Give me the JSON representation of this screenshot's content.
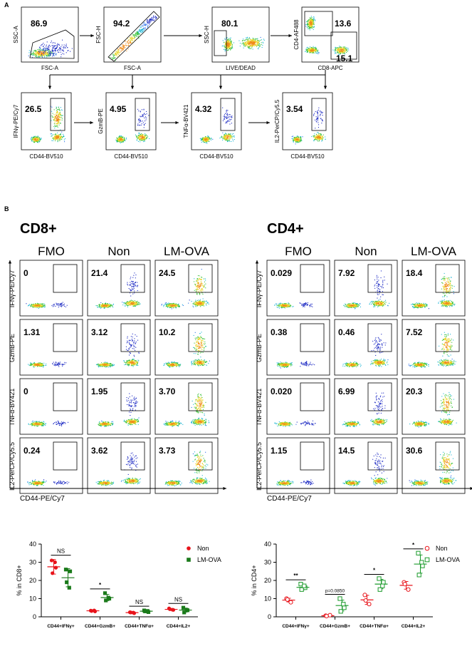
{
  "panel_a": {
    "label": "A",
    "top_row": [
      {
        "pct": "86.9",
        "ylabel": "SSC-A",
        "xlabel": "FSC-A"
      },
      {
        "pct": "94.2",
        "ylabel": "FSC-H",
        "xlabel": "FSC-A"
      },
      {
        "pct": "80.1",
        "ylabel": "SSC-H",
        "xlabel": "LIVE/DEAD"
      },
      {
        "pct": "13.6",
        "pct2": "15.1",
        "ylabel": "CD4-AF488",
        "xlabel": "CD8-APC"
      }
    ],
    "bottom_row": [
      {
        "pct": "26.5",
        "ylabel": "IFNγ-PE/Cy7",
        "xlabel": "CD44-BV510"
      },
      {
        "pct": "4.95",
        "ylabel": "GzmB-PE",
        "xlabel": "CD44-BV510"
      },
      {
        "pct": "4.32",
        "ylabel": "TNFα-BV421",
        "xlabel": "CD44-BV510"
      },
      {
        "pct": "3.54",
        "ylabel": "IL2-PerCP/Cy5.5",
        "xlabel": "CD44-BV510"
      }
    ]
  },
  "panel_b": {
    "label": "B",
    "grids": [
      {
        "title": "CD8+",
        "columns": [
          "FMO",
          "Non",
          "LM-OVA"
        ],
        "row_labels": [
          "IFNγ-PE/Cy7",
          "GzmB-PE",
          "TNFα-BV421",
          "IL2-PerCP/Cy5.5"
        ],
        "xlabel": "CD44-PE/Cy7",
        "values": [
          [
            "0",
            "21.4",
            "24.5"
          ],
          [
            "1.31",
            "3.12",
            "10.2"
          ],
          [
            "0",
            "1.95",
            "3.70"
          ],
          [
            "0.24",
            "3.62",
            "3.73"
          ]
        ]
      },
      {
        "title": "CD4+",
        "columns": [
          "FMO",
          "Non",
          "LM-OVA"
        ],
        "row_labels": [
          "IFNγ-PE/Cy7",
          "GzmB-PE",
          "TNFα-BV421",
          "IL2-PerCP/Cy5.5"
        ],
        "xlabel": "CD44-PE/Cy7",
        "values": [
          [
            "0.029",
            "7.92",
            "18.4"
          ],
          [
            "0.38",
            "0.46",
            "7.52"
          ],
          [
            "0.020",
            "6.99",
            "20.3"
          ],
          [
            "1.15",
            "14.5",
            "30.6"
          ]
        ]
      }
    ]
  },
  "colors": {
    "non_cd8": "#e8131a",
    "lmova_cd8": "#1a7a1a",
    "non_cd4": "#e8131a",
    "lmova_cd4": "#1a9a2a"
  },
  "chart_data": [
    {
      "type": "scatter",
      "ylabel": "% in CD8+",
      "ylim": [
        0,
        40
      ],
      "yticks": [
        0,
        10,
        20,
        30,
        40
      ],
      "categories": [
        "CD44+IFNγ+",
        "CD44+GzmB+",
        "CD44+TNFα+",
        "CD44+IL2+"
      ],
      "legend_position": "top-right",
      "series": [
        {
          "name": "Non",
          "marker": "filled-circle",
          "points": [
            [
              31,
              27,
              24,
              30
            ],
            [
              3.4,
              3.0,
              3.2,
              3.5
            ],
            [
              2.5,
              2.0,
              2.4,
              2.3
            ],
            [
              4.6,
              3.8,
              4.2,
              3.9
            ]
          ],
          "mean": [
            27.5,
            3.3,
            2.3,
            4.1
          ],
          "sd": [
            4.0,
            0.3,
            0.3,
            0.4
          ]
        },
        {
          "name": "LM-OVA",
          "marker": "filled-square",
          "points": [
            [
              26,
              25,
              19,
              16
            ],
            [
              13,
              10,
              9,
              10.5
            ],
            [
              3.5,
              2.6,
              3.0,
              3.2
            ],
            [
              5.0,
              3.6,
              2.4,
              3.8
            ]
          ],
          "mean": [
            21.5,
            10.6,
            3.1,
            3.7
          ],
          "sd": [
            5.0,
            1.7,
            0.4,
            1.1
          ]
        }
      ],
      "significance": [
        "NS",
        "*",
        "NS",
        "NS"
      ]
    },
    {
      "type": "scatter",
      "ylabel": "% in CD4+",
      "ylim": [
        0,
        40
      ],
      "yticks": [
        0,
        10,
        20,
        30,
        40
      ],
      "categories": [
        "CD44+IFNγ+",
        "CD44+GzmB+",
        "CD44+TNFα+",
        "CD44+IL2+"
      ],
      "legend_position": "top-right",
      "series": [
        {
          "name": "Non",
          "marker": "open-circle",
          "points": [
            [
              10,
              8,
              9.5
            ],
            [
              0.6,
              0.9,
              0.4
            ],
            [
              12,
              7,
              9
            ],
            [
              19,
              15,
              18
            ]
          ],
          "mean": [
            9.2,
            0.6,
            9.3,
            17.3
          ],
          "sd": [
            1.0,
            0.3,
            2.5,
            2.1
          ]
        },
        {
          "name": "LM-OVA",
          "marker": "open-square",
          "points": [
            [
              18,
              16,
              15,
              17
            ],
            [
              10,
              5,
              3,
              7
            ],
            [
              21,
              19,
              15,
              17
            ],
            [
              35,
              28,
              23,
              30
            ]
          ],
          "mean": [
            16.2,
            6.2,
            18.0,
            29.0
          ],
          "sd": [
            1.3,
            3.0,
            2.6,
            5.0
          ]
        }
      ],
      "significance": [
        "**",
        "p=0.0850",
        "*",
        "*"
      ]
    }
  ]
}
